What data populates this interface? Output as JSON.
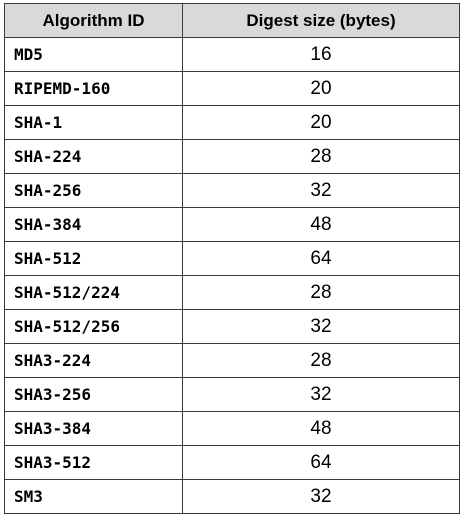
{
  "table": {
    "headers": {
      "algorithm": "Algorithm ID",
      "digest_size": "Digest size (bytes)"
    },
    "rows": [
      {
        "algorithm": "MD5",
        "digest_size": "16"
      },
      {
        "algorithm": "RIPEMD-160",
        "digest_size": "20"
      },
      {
        "algorithm": "SHA-1",
        "digest_size": "20"
      },
      {
        "algorithm": "SHA-224",
        "digest_size": "28"
      },
      {
        "algorithm": "SHA-256",
        "digest_size": "32"
      },
      {
        "algorithm": "SHA-384",
        "digest_size": "48"
      },
      {
        "algorithm": "SHA-512",
        "digest_size": "64"
      },
      {
        "algorithm": "SHA-512/224",
        "digest_size": "28"
      },
      {
        "algorithm": "SHA-512/256",
        "digest_size": "32"
      },
      {
        "algorithm": "SHA3-224",
        "digest_size": "28"
      },
      {
        "algorithm": "SHA3-256",
        "digest_size": "32"
      },
      {
        "algorithm": "SHA3-384",
        "digest_size": "48"
      },
      {
        "algorithm": "SHA3-512",
        "digest_size": "64"
      },
      {
        "algorithm": "SM3",
        "digest_size": "32"
      }
    ]
  }
}
